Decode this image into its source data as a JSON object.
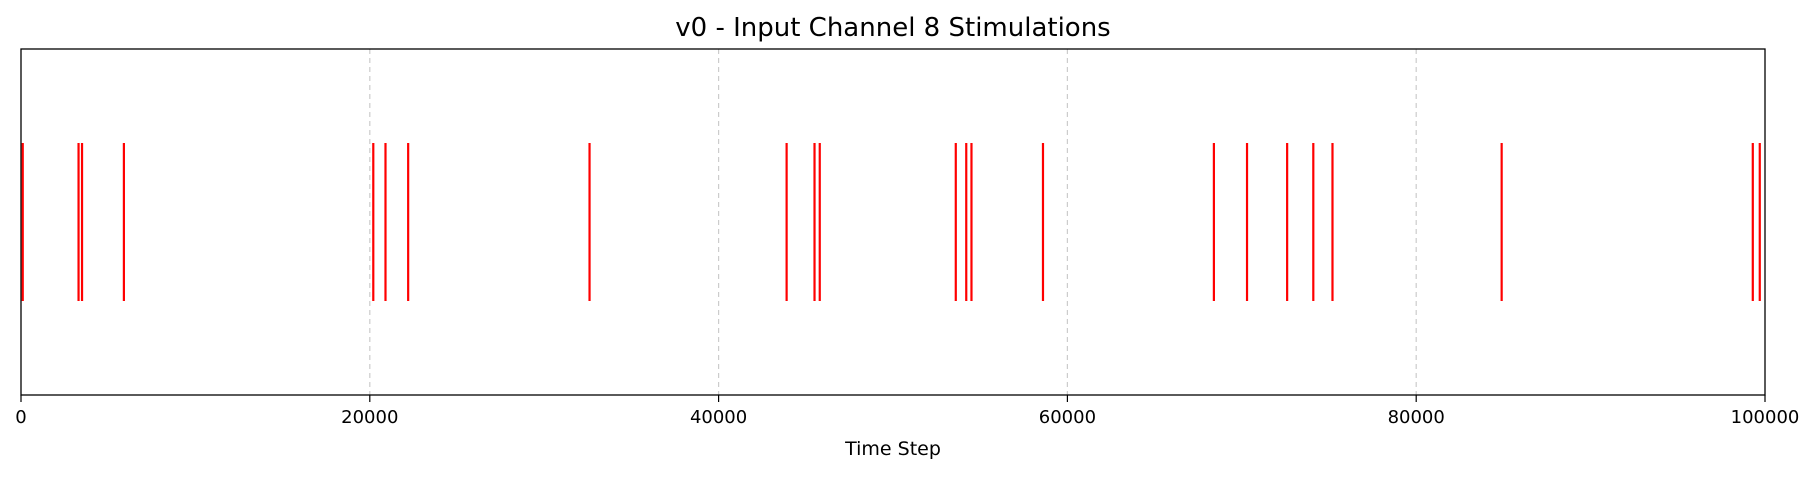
{
  "chart_data": {
    "type": "eventplot",
    "title": "v0 - Input Channel 8 Stimulations",
    "xlabel": "Time Step",
    "ylabel": "",
    "xlim": [
      0,
      100000
    ],
    "xticks": [
      0,
      20000,
      40000,
      60000,
      80000,
      100000
    ],
    "xtick_labels": [
      "0",
      "20000",
      "40000",
      "60000",
      "80000",
      "100000"
    ],
    "grid": "x-dashed",
    "event_color": "#ff0000",
    "events": [
      100,
      3300,
      3500,
      5900,
      20200,
      20900,
      22200,
      32600,
      43900,
      45500,
      45800,
      53600,
      54200,
      54500,
      58600,
      68400,
      70300,
      72600,
      74100,
      75200,
      84900,
      99300,
      99700
    ]
  }
}
